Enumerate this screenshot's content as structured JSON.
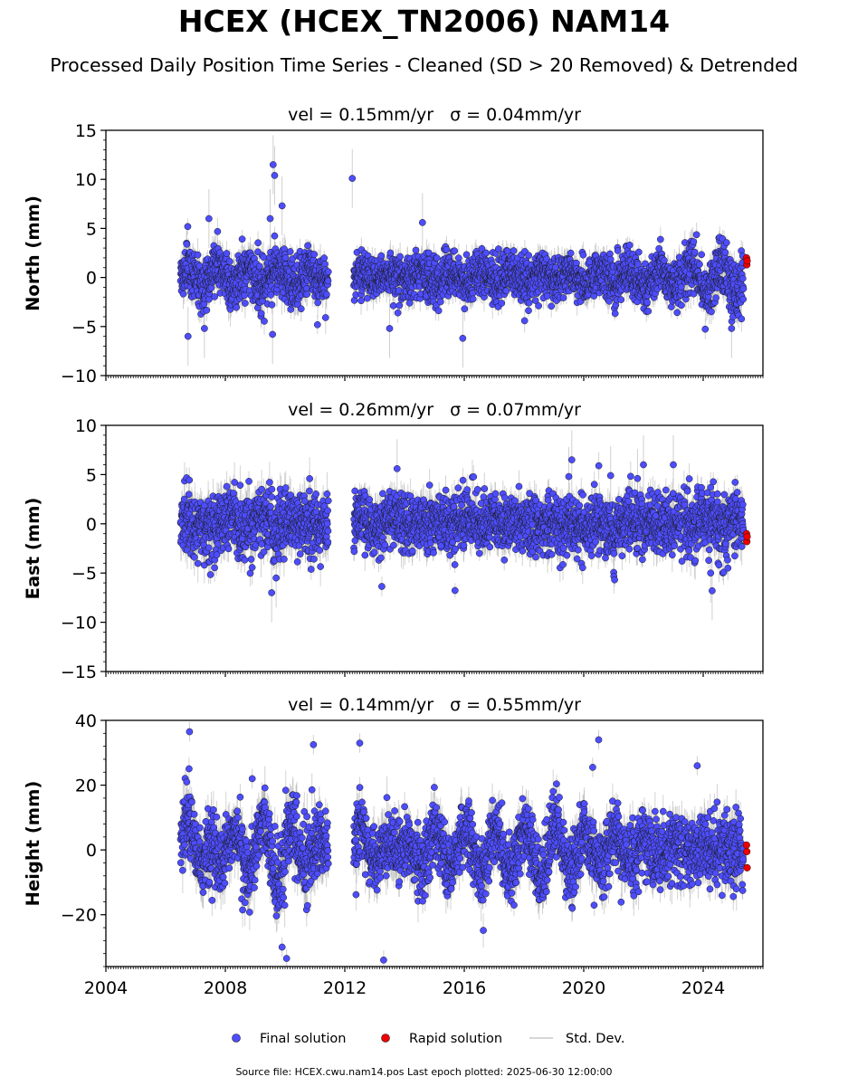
{
  "title": "HCEX (HCEX_TN2006) NAM14",
  "subtitle": "Processed Daily Position Time Series - Cleaned (SD > 20 Removed) & Detrended",
  "footer": "Source file: HCEX.cwu.nam14.pos  Last epoch plotted: 2025-06-30 12:00:00",
  "legend": {
    "final": "Final solution",
    "rapid": "Rapid solution",
    "std": "Std. Dev."
  },
  "colors": {
    "final": "#4d4dff",
    "rapid": "#ee0000",
    "std": "#b0b0b0",
    "edge": "#1a1a1a"
  },
  "chart_data": {
    "type": "scatter",
    "x_range": [
      2004,
      2026
    ],
    "x_ticks": [
      "2004",
      "2008",
      "2012",
      "2016",
      "2020",
      "2024"
    ],
    "panels": [
      {
        "id": "north",
        "ylabel": "North (mm)",
        "title_left": "vel = 0.15mm/yr",
        "title_right": "σ = 0.04mm/yr",
        "ylim": [
          -10,
          15
        ],
        "yticks": [
          15,
          10,
          5,
          0,
          -5,
          -10
        ],
        "yticks_text": [
          "15",
          "10",
          "5",
          "0",
          "−5",
          "−10"
        ],
        "segments": [
          {
            "start": 2006.5,
            "end": 2011.45,
            "noise": 1.3,
            "err": 1.2
          },
          {
            "start": 2012.3,
            "end": 2023.3,
            "noise": 1.2,
            "err": 1.0
          },
          {
            "start": 2023.35,
            "end": 2025.35,
            "noise": 1.4,
            "err": 1.1
          }
        ],
        "seasonal": [
          {
            "year": 2009.5,
            "val": 1.0
          },
          {
            "year": 2012.8,
            "val": 0.3
          },
          {
            "year": 2016.5,
            "val": 0.6
          },
          {
            "year": 2020.5,
            "val": 0.4
          },
          {
            "year": 2024.3,
            "val": 1.2
          }
        ],
        "outliers": [
          [
            2009.6,
            11.5
          ],
          [
            2009.65,
            10.4
          ],
          [
            2009.9,
            7.3
          ],
          [
            2009.5,
            6.0
          ],
          [
            2012.25,
            10.1
          ],
          [
            2007.45,
            6.0
          ],
          [
            2006.75,
            -6.0
          ],
          [
            2009.58,
            -5.8
          ],
          [
            2013.5,
            -5.2
          ],
          [
            2015.95,
            -6.2
          ],
          [
            2024.95,
            -5.2
          ],
          [
            2014.6,
            5.6
          ],
          [
            2007.3,
            -5.2
          ]
        ],
        "rapid": [
          [
            2025.45,
            2.0
          ],
          [
            2025.46,
            1.3
          ],
          [
            2025.47,
            1.7
          ]
        ]
      },
      {
        "id": "east",
        "ylabel": "East (mm)",
        "title_left": "vel = 0.26mm/yr",
        "title_right": "σ = 0.07mm/yr",
        "ylim": [
          -15,
          10
        ],
        "yticks": [
          10,
          5,
          0,
          -5,
          -10,
          -15
        ],
        "yticks_text": [
          "10",
          "5",
          "0",
          "−5",
          "−10",
          "−15"
        ],
        "segments": [
          {
            "start": 2006.5,
            "end": 2011.45,
            "noise": 1.6,
            "err": 1.5
          },
          {
            "start": 2012.3,
            "end": 2023.3,
            "noise": 1.5,
            "err": 1.2
          },
          {
            "start": 2023.35,
            "end": 2025.35,
            "noise": 1.7,
            "err": 1.3
          }
        ],
        "seasonal": [
          {
            "year": 2007.0,
            "val": 0.5
          },
          {
            "year": 2009.0,
            "val": -1.0
          },
          {
            "year": 2012.8,
            "val": 1.0
          },
          {
            "year": 2016.0,
            "val": -0.5
          },
          {
            "year": 2020.5,
            "val": 0.4
          },
          {
            "year": 2024.3,
            "val": -0.5
          }
        ],
        "outliers": [
          [
            2009.55,
            -7.0
          ],
          [
            2009.7,
            -5.5
          ],
          [
            2019.6,
            6.5
          ],
          [
            2019.5,
            4.8
          ],
          [
            2022.0,
            6.0
          ],
          [
            2023.0,
            6.0
          ],
          [
            2024.3,
            -6.8
          ],
          [
            2024.25,
            -5.0
          ],
          [
            2013.75,
            5.6
          ],
          [
            2021.8,
            4.6
          ],
          [
            2020.9,
            4.9
          ]
        ],
        "rapid": [
          [
            2025.45,
            -1.0
          ],
          [
            2025.46,
            -1.8
          ],
          [
            2025.47,
            -1.3
          ]
        ]
      },
      {
        "id": "height",
        "ylabel": "Height (mm)",
        "title_left": "vel = 0.14mm/yr",
        "title_right": "σ = 0.55mm/yr",
        "ylim": [
          -36,
          40
        ],
        "yticks": [
          40,
          20,
          0,
          -20
        ],
        "yticks_text": [
          "40",
          "20",
          "0",
          "−20"
        ],
        "segments": [
          {
            "start": 2006.5,
            "end": 2011.45,
            "noise": 5.5,
            "err": 5.0
          },
          {
            "start": 2012.3,
            "end": 2023.3,
            "noise": 5.0,
            "err": 4.5
          },
          {
            "start": 2023.35,
            "end": 2025.35,
            "noise": 5.5,
            "err": 4.5
          }
        ],
        "seasonal": [
          {
            "year": 2006.7,
            "val": 10.0
          },
          {
            "year": 2008.0,
            "val": -5.0
          },
          {
            "year": 2009.8,
            "val": -12.0
          },
          {
            "year": 2012.6,
            "val": 8.0
          },
          {
            "year": 2014.5,
            "val": -5.0
          },
          {
            "year": 2019.0,
            "val": -8.0
          },
          {
            "year": 2021.5,
            "val": -3.0
          },
          {
            "year": 2024.8,
            "val": 0.0
          }
        ],
        "outliers": [
          [
            2006.8,
            36.5
          ],
          [
            2010.95,
            32.5
          ],
          [
            2012.5,
            33.0
          ],
          [
            2020.5,
            34.0
          ],
          [
            2020.3,
            25.5
          ],
          [
            2013.3,
            -34.0
          ],
          [
            2010.05,
            -33.5
          ],
          [
            2009.9,
            -30.0
          ],
          [
            2023.8,
            26.0
          ],
          [
            2008.9,
            22.0
          ]
        ],
        "rapid": [
          [
            2025.45,
            1.5
          ],
          [
            2025.46,
            -0.5
          ],
          [
            2025.47,
            -5.5
          ]
        ]
      }
    ]
  }
}
